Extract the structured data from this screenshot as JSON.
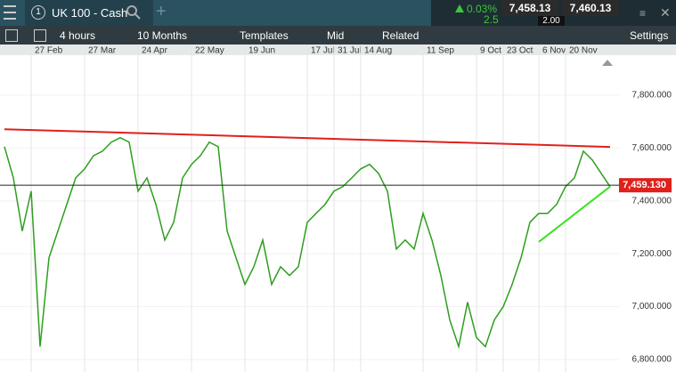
{
  "header": {
    "badge": "1",
    "instrument": "UK 100 - Cash",
    "change_percent": "0.03%",
    "change_points": "2.5",
    "sell": "7,458.13",
    "buy": "7,460.13",
    "spread": "2.00"
  },
  "toolbar": {
    "interval": "4 hours",
    "range": "10 Months",
    "templates": "Templates",
    "price_type": "Mid",
    "related": "Related",
    "settings": "Settings"
  },
  "chart_data": {
    "type": "line",
    "categories": [
      null,
      null,
      null,
      "27 Feb",
      null,
      null,
      null,
      null,
      null,
      "27 Mar",
      null,
      null,
      null,
      null,
      null,
      "24 Apr",
      null,
      null,
      null,
      null,
      null,
      "22 May",
      null,
      null,
      null,
      null,
      null,
      "19 Jun",
      null,
      null,
      null,
      null,
      null,
      null,
      "17 Jul",
      null,
      null,
      "31 Jul",
      null,
      null,
      "14 Aug",
      null,
      null,
      null,
      null,
      null,
      null,
      "11 Sep",
      null,
      null,
      null,
      null,
      null,
      "9 Oct",
      null,
      null,
      "23 Oct",
      null,
      null,
      null,
      "6 Nov",
      null,
      null,
      "20 Nov",
      null,
      null,
      null,
      null,
      null
    ],
    "series": [
      {
        "color": "#2e9e1f",
        "values": [
          7605,
          7487,
          7286,
          7437,
          6849,
          7185,
          7286,
          7387,
          7487,
          7521,
          7571,
          7588,
          7622,
          7639,
          7622,
          7437,
          7487,
          7387,
          7252,
          7319,
          7487,
          7538,
          7571,
          7622,
          7605,
          7286,
          7185,
          7084,
          7151,
          7252,
          7084,
          7151,
          7118,
          7151,
          7319,
          7353,
          7387,
          7437,
          7454,
          7487,
          7521,
          7538,
          7504,
          7437,
          7218,
          7252,
          7218,
          7353,
          7252,
          7118,
          6950,
          6849,
          7017,
          6883,
          6849,
          6950,
          7000,
          7084,
          7185,
          7319,
          7353,
          7353,
          7387,
          7454,
          7487,
          7588,
          7555,
          7504,
          7454
        ]
      }
    ],
    "trendlines": [
      {
        "color": "#e0201b",
        "from": 0,
        "to": 68,
        "values": [
          7671,
          7604
        ]
      },
      {
        "color": "#39e21f",
        "from": 60,
        "to": 68,
        "values": [
          7245,
          7454
        ]
      }
    ],
    "current_price": {
      "value": 7459.13,
      "label": "7,459.130",
      "color": "#e0201b"
    },
    "ylim": [
      6753,
      7951
    ],
    "yticks": [
      {
        "value": 6800,
        "label": "6,800.000"
      },
      {
        "value": 7000,
        "label": "7,000.000"
      },
      {
        "value": 7200,
        "label": "7,200.000"
      },
      {
        "value": 7400,
        "label": "7,400.000"
      },
      {
        "value": 7600,
        "label": "7,600.000"
      },
      {
        "value": 7800,
        "label": "7,800.000"
      }
    ],
    "grid": true
  }
}
